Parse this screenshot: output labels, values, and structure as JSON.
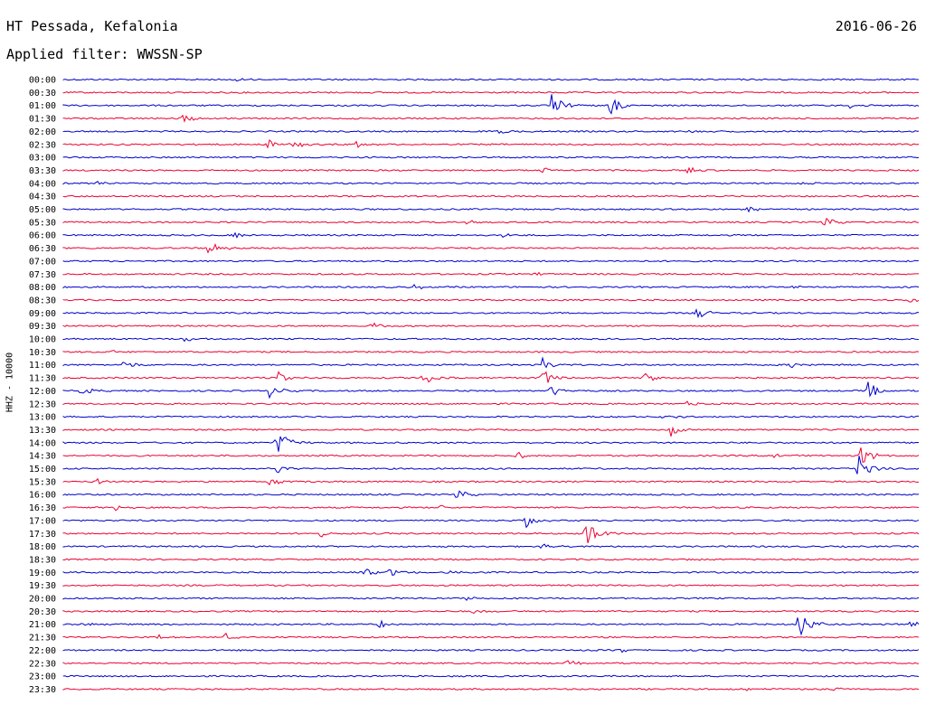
{
  "header": {
    "station": "HT Pessada, Kefalonia",
    "date": "2016-06-26",
    "filter_label": "Applied filter: WWSSN-SP"
  },
  "chart_data": {
    "type": "line",
    "title": "HT Pessada, Kefalonia",
    "ylabel": "HHZ - 10000",
    "grid": false,
    "series_colors": [
      "#0000cc",
      "#ee0033"
    ],
    "rows": [
      {
        "label": "00:00",
        "events": [
          [
            20,
            0.3
          ]
        ]
      },
      {
        "label": "00:30",
        "events": []
      },
      {
        "label": "01:00",
        "events": [
          [
            57,
            1.5
          ],
          [
            64,
            1.3
          ],
          [
            92,
            0.3
          ]
        ]
      },
      {
        "label": "01:30",
        "events": [
          [
            14,
            0.5
          ],
          [
            73,
            0.2
          ]
        ]
      },
      {
        "label": "02:00",
        "events": [
          [
            51,
            0.4
          ],
          [
            73,
            0.2
          ]
        ]
      },
      {
        "label": "02:30",
        "events": [
          [
            24,
            0.7
          ],
          [
            27,
            0.5
          ],
          [
            34,
            0.6
          ]
        ]
      },
      {
        "label": "03:00",
        "events": []
      },
      {
        "label": "03:30",
        "events": [
          [
            56,
            0.5
          ],
          [
            73,
            0.4
          ]
        ]
      },
      {
        "label": "04:00",
        "events": [
          [
            4,
            0.3
          ],
          [
            86,
            0.2
          ]
        ]
      },
      {
        "label": "04:30",
        "events": []
      },
      {
        "label": "05:00",
        "events": [
          [
            80,
            0.4
          ]
        ]
      },
      {
        "label": "05:30",
        "events": [
          [
            47,
            0.3
          ],
          [
            89,
            0.6
          ]
        ]
      },
      {
        "label": "06:00",
        "events": [
          [
            20,
            0.4
          ],
          [
            51,
            0.3
          ]
        ]
      },
      {
        "label": "06:30",
        "events": [
          [
            17,
            1.0
          ]
        ]
      },
      {
        "label": "07:00",
        "events": []
      },
      {
        "label": "07:30",
        "events": [
          [
            55,
            0.2
          ]
        ]
      },
      {
        "label": "08:00",
        "events": [
          [
            41,
            0.3
          ],
          [
            85,
            0.3
          ]
        ]
      },
      {
        "label": "08:30",
        "events": [
          [
            99,
            0.5
          ]
        ]
      },
      {
        "label": "09:00",
        "events": [
          [
            74,
            0.8
          ]
        ]
      },
      {
        "label": "09:30",
        "events": [
          [
            36,
            0.5
          ]
        ]
      },
      {
        "label": "10:00",
        "events": [
          [
            14,
            0.4
          ]
        ]
      },
      {
        "label": "10:30",
        "events": [
          [
            5,
            0.3
          ]
        ]
      },
      {
        "label": "11:00",
        "events": [
          [
            7,
            0.6
          ],
          [
            56,
            0.8
          ],
          [
            85,
            0.5
          ]
        ]
      },
      {
        "label": "11:30",
        "events": [
          [
            25,
            0.9
          ],
          [
            42,
            1.0
          ],
          [
            56,
            1.2
          ],
          [
            68,
            0.9
          ]
        ]
      },
      {
        "label": "12:00",
        "events": [
          [
            2,
            0.6
          ],
          [
            24,
            0.9
          ],
          [
            57,
            0.8
          ],
          [
            94,
            1.2
          ]
        ]
      },
      {
        "label": "12:30",
        "events": [
          [
            73,
            0.3
          ]
        ]
      },
      {
        "label": "13:00",
        "events": [
          [
            70,
            0.5
          ]
        ]
      },
      {
        "label": "13:30",
        "events": [
          [
            71,
            0.9
          ]
        ]
      },
      {
        "label": "14:00",
        "events": [
          [
            25,
            1.9
          ]
        ]
      },
      {
        "label": "14:30",
        "events": [
          [
            53,
            0.6
          ],
          [
            83,
            0.5
          ],
          [
            93,
            1.5
          ]
        ]
      },
      {
        "label": "15:00",
        "events": [
          [
            25,
            0.7
          ],
          [
            93,
            2.0
          ]
        ]
      },
      {
        "label": "15:30",
        "events": [
          [
            4,
            0.4
          ],
          [
            24,
            0.5
          ]
        ]
      },
      {
        "label": "16:00",
        "events": [
          [
            46,
            0.6
          ]
        ]
      },
      {
        "label": "16:30",
        "events": [
          [
            6,
            0.5
          ],
          [
            44,
            0.3
          ]
        ]
      },
      {
        "label": "17:00",
        "events": [
          [
            54,
            0.9
          ]
        ]
      },
      {
        "label": "17:30",
        "events": [
          [
            61,
            2.2
          ],
          [
            30,
            0.4
          ]
        ]
      },
      {
        "label": "18:00",
        "events": [
          [
            56,
            0.4
          ]
        ]
      },
      {
        "label": "18:30",
        "events": [
          [
            73,
            0.2
          ]
        ]
      },
      {
        "label": "19:00",
        "events": [
          [
            35,
            0.8
          ],
          [
            38,
            0.7
          ],
          [
            45,
            0.3
          ]
        ]
      },
      {
        "label": "19:30",
        "events": []
      },
      {
        "label": "20:00",
        "events": [
          [
            47,
            0.3
          ]
        ]
      },
      {
        "label": "20:30",
        "events": [
          [
            48,
            0.3
          ]
        ]
      },
      {
        "label": "21:00",
        "events": [
          [
            2,
            0.3
          ],
          [
            37,
            0.5
          ],
          [
            86,
            2.0
          ],
          [
            99,
            0.6
          ]
        ]
      },
      {
        "label": "21:30",
        "events": [
          [
            11,
            0.4
          ],
          [
            19,
            0.5
          ]
        ]
      },
      {
        "label": "22:00",
        "events": [
          [
            65,
            0.3
          ]
        ]
      },
      {
        "label": "22:30",
        "events": [
          [
            59,
            0.4
          ]
        ]
      },
      {
        "label": "23:00",
        "events": []
      },
      {
        "label": "23:30",
        "events": [
          [
            80,
            0.3
          ],
          [
            90,
            0.2
          ]
        ]
      }
    ]
  }
}
